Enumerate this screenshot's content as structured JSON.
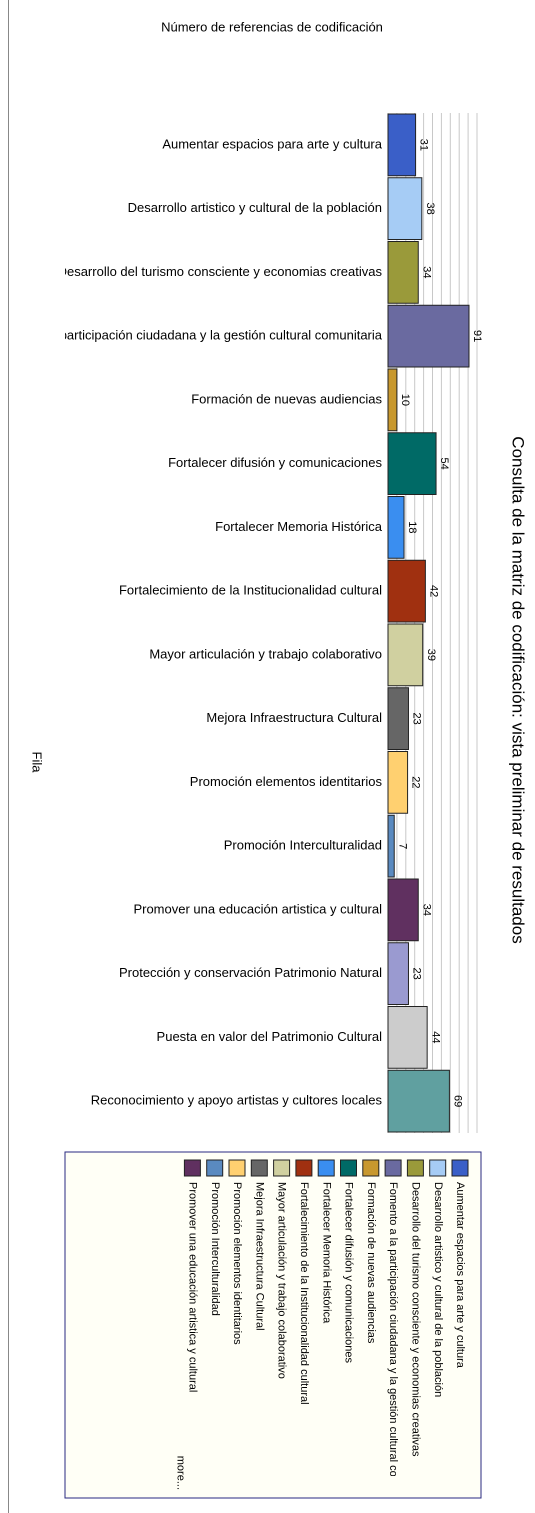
{
  "chart_data": {
    "type": "bar",
    "orientation": "horizontal",
    "title": "Número de referencias de codificación",
    "caption": "Consulta de la matriz de codificación: vista preliminar de resultados",
    "y_label": "Fila",
    "categories": [
      "Aumentar espacios para arte y cultura",
      "Desarrollo artistico y cultural de la población",
      "Desarrollo del turismo consciente y economias creativas",
      "Fomento a la participación ciudadana y la gestión cultural comunitaria",
      "Formación de nuevas audiencias",
      "Fortalecer difusión y comunicaciones",
      "Fortalecer Memoria Histórica",
      "Fortalecimiento de la Institucionalidad cultural",
      "Mayor articulación y trabajo colaborativo",
      "Mejora Infraestructura Cultural",
      "Promoción elementos identitarios",
      "Promoción Interculturalidad",
      "Promover una educación artistica y cultural",
      "Protección y conservación Patrimonio Natural",
      "Puesta en valor del Patrimonio Cultural",
      "Reconocimiento y apoyo artistas y cultores locales"
    ],
    "values": [
      31,
      38,
      34,
      91,
      10,
      54,
      18,
      42,
      39,
      23,
      22,
      7,
      34,
      23,
      44,
      69
    ],
    "colors": [
      "#3a5fc8",
      "#a6ccf5",
      "#9a9a3a",
      "#6a6aa0",
      "#c8982e",
      "#006a66",
      "#3a8ef0",
      "#a03010",
      "#d0d0a0",
      "#666666",
      "#ffd070",
      "#5a8ac0",
      "#603060",
      "#9a9ad0",
      "#cccccc",
      "#60a0a0"
    ],
    "xlim": [
      0,
      100
    ],
    "xticks": [
      0,
      10,
      20,
      30,
      40,
      50,
      60,
      70,
      80,
      90,
      100
    ],
    "grid": true,
    "legend_count": 13,
    "legend_more": "more..."
  }
}
